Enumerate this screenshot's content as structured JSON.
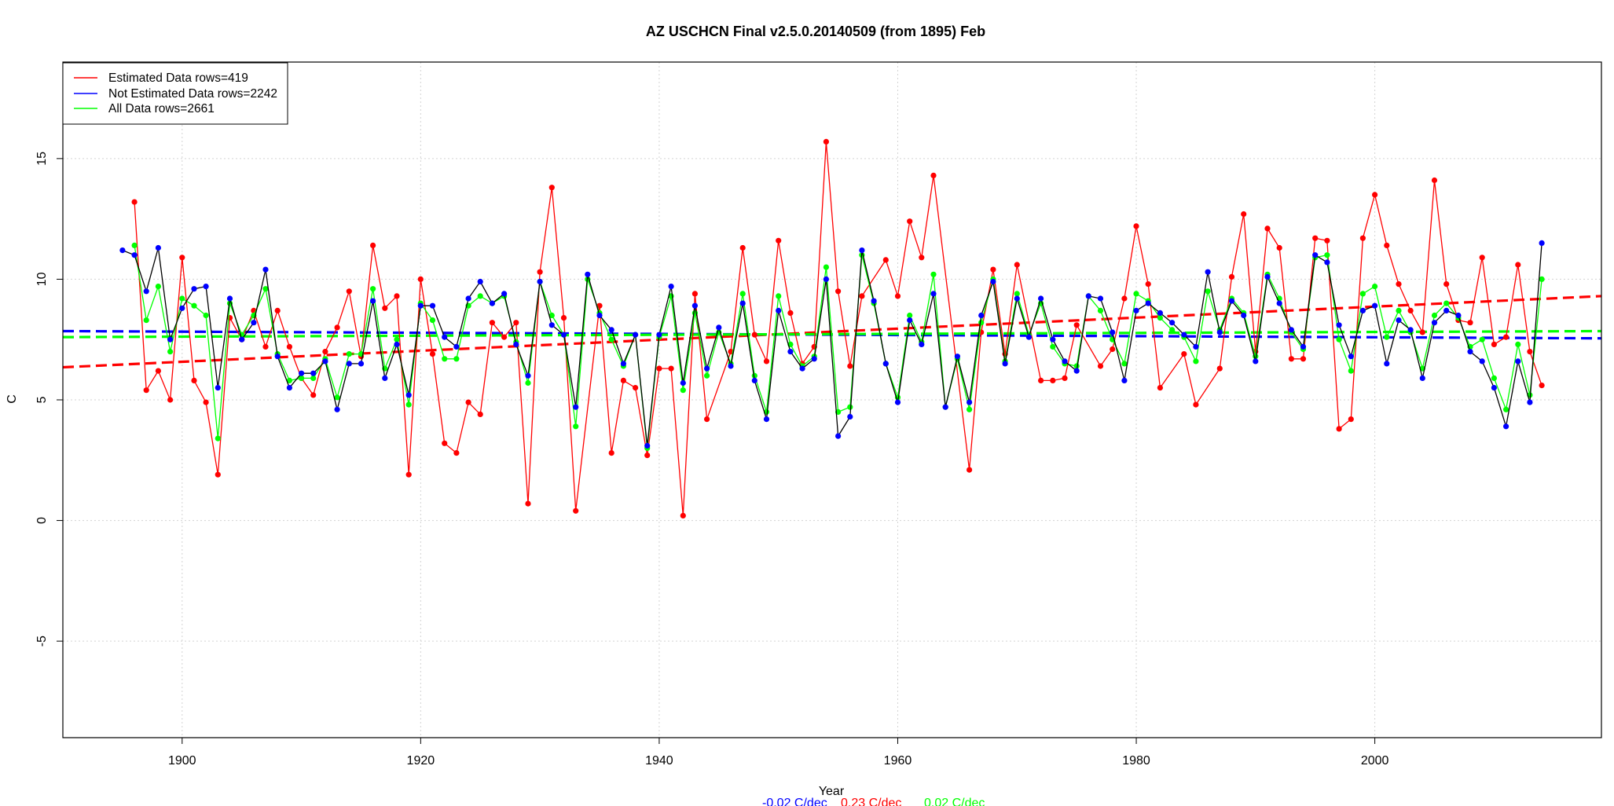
{
  "chart_data": {
    "type": "line",
    "title": "AZ USCHCN Final v2.5.0.20140509 (from 1895) Feb",
    "xlabel": "Year",
    "ylabel": "C",
    "xlim": [
      1890,
      2019
    ],
    "ylim": [
      -9,
      19
    ],
    "x_ticks": [
      1900,
      1920,
      1940,
      1960,
      1980,
      2000
    ],
    "y_ticks": [
      -5,
      0,
      5,
      10,
      15
    ],
    "grid": true,
    "legend_position": "top-left",
    "legend": [
      {
        "label": "Estimated Data rows=419",
        "color": "#ff0000"
      },
      {
        "label": "Not Estimated Data rows=2242",
        "color": "#0000ff"
      },
      {
        "label": "All Data rows=2661",
        "color": "#00ff00"
      }
    ],
    "slopes": [
      {
        "label": "-0.02 C/dec",
        "color": "#0000ff"
      },
      {
        "label": "0.23 C/dec",
        "color": "#ff0000"
      },
      {
        "label": "0.02 C/dec",
        "color": "#00ff00"
      }
    ],
    "trends": [
      {
        "name": "Estimated trend",
        "color": "#ff0000",
        "x": [
          1890,
          2019
        ],
        "y": [
          6.35,
          9.3
        ]
      },
      {
        "name": "Not Estimated trend",
        "color": "#0000ff",
        "x": [
          1890,
          2019
        ],
        "y": [
          7.85,
          7.55
        ]
      },
      {
        "name": "All Data trend",
        "color": "#00ff00",
        "x": [
          1890,
          2019
        ],
        "y": [
          7.6,
          7.85
        ]
      }
    ],
    "series": [
      {
        "name": "Estimated",
        "color": "#ff0000",
        "x": [
          1896,
          1897,
          1898,
          1899,
          1900,
          1901,
          1902,
          1903,
          1904,
          1905,
          1906,
          1907,
          1908,
          1909,
          1910,
          1911,
          1912,
          1913,
          1914,
          1915,
          1916,
          1917,
          1918,
          1919,
          1920,
          1921,
          1922,
          1923,
          1924,
          1925,
          1926,
          1927,
          1928,
          1929,
          1930,
          1931,
          1932,
          1933,
          1935,
          1936,
          1937,
          1938,
          1939,
          1940,
          1941,
          1942,
          1943,
          1944,
          1946,
          1947,
          1948,
          1949,
          1950,
          1951,
          1952,
          1953,
          1954,
          1955,
          1956,
          1957,
          1959,
          1960,
          1961,
          1962,
          1963,
          1966,
          1967,
          1968,
          1969,
          1970,
          1972,
          1973,
          1974,
          1975,
          1977,
          1978,
          1979,
          1980,
          1981,
          1982,
          1984,
          1985,
          1987,
          1988,
          1989,
          1990,
          1991,
          1992,
          1993,
          1994,
          1995,
          1996,
          1997,
          1998,
          1999,
          2000,
          2001,
          2002,
          2003,
          2004,
          2005,
          2006,
          2007,
          2008,
          2009,
          2010,
          2011,
          2012,
          2013,
          2014
        ],
        "y": [
          13.2,
          5.4,
          6.2,
          5.0,
          10.9,
          5.8,
          4.9,
          1.9,
          8.4,
          7.5,
          8.7,
          7.2,
          8.7,
          7.2,
          5.9,
          5.2,
          7.0,
          8.0,
          9.5,
          6.8,
          11.4,
          8.8,
          9.3,
          1.9,
          10.0,
          6.9,
          3.2,
          2.8,
          4.9,
          4.4,
          8.2,
          7.6,
          8.2,
          0.7,
          10.3,
          13.8,
          8.4,
          0.4,
          8.9,
          2.8,
          5.8,
          5.5,
          2.7,
          6.3,
          6.3,
          0.2,
          9.4,
          4.2,
          7.0,
          11.3,
          7.7,
          6.6,
          11.6,
          8.6,
          6.5,
          7.2,
          15.7,
          9.5,
          6.4,
          9.3,
          10.8,
          9.3,
          12.4,
          10.9,
          14.3,
          2.1,
          7.8,
          10.4,
          6.9,
          10.6,
          5.8,
          5.8,
          5.9,
          8.1,
          6.4,
          7.1,
          9.2,
          12.2,
          9.8,
          5.5,
          6.9,
          4.8,
          6.3,
          10.1,
          12.7,
          7.0,
          12.1,
          11.3,
          6.7,
          6.7,
          11.7,
          11.6,
          3.8,
          4.2,
          11.7,
          13.5,
          11.4,
          9.8,
          8.7,
          7.8,
          14.1,
          9.8,
          8.3,
          8.2,
          10.9,
          7.3,
          7.6,
          10.6,
          7.0,
          5.6
        ]
      },
      {
        "name": "Not Estimated",
        "color": "#0000ff",
        "x": [
          1895,
          1896,
          1897,
          1898,
          1899,
          1900,
          1901,
          1902,
          1903,
          1904,
          1905,
          1906,
          1907,
          1908,
          1909,
          1910,
          1911,
          1912,
          1913,
          1914,
          1915,
          1916,
          1917,
          1918,
          1919,
          1920,
          1921,
          1922,
          1923,
          1924,
          1925,
          1926,
          1927,
          1928,
          1929,
          1930,
          1931,
          1932,
          1933,
          1934,
          1935,
          1936,
          1937,
          1938,
          1939,
          1940,
          1941,
          1942,
          1943,
          1944,
          1945,
          1946,
          1947,
          1948,
          1949,
          1950,
          1951,
          1952,
          1953,
          1954,
          1955,
          1956,
          1957,
          1958,
          1959,
          1960,
          1961,
          1962,
          1963,
          1964,
          1965,
          1966,
          1967,
          1968,
          1969,
          1970,
          1971,
          1972,
          1973,
          1974,
          1975,
          1976,
          1977,
          1978,
          1979,
          1980,
          1981,
          1982,
          1983,
          1984,
          1985,
          1986,
          1987,
          1988,
          1989,
          1990,
          1991,
          1992,
          1993,
          1994,
          1995,
          1996,
          1997,
          1998,
          1999,
          2000,
          2001,
          2002,
          2003,
          2004,
          2005,
          2006,
          2007,
          2008,
          2009,
          2010,
          2011,
          2012,
          2013,
          2014
        ],
        "y": [
          11.2,
          11.0,
          9.5,
          11.3,
          7.5,
          8.8,
          9.6,
          9.7,
          5.5,
          9.2,
          7.5,
          8.2,
          10.4,
          6.8,
          5.5,
          6.1,
          6.1,
          6.6,
          4.6,
          6.5,
          6.5,
          9.1,
          5.9,
          7.3,
          5.2,
          8.9,
          8.9,
          7.6,
          7.2,
          9.2,
          9.9,
          9.0,
          9.4,
          7.3,
          6.0,
          9.9,
          8.1,
          7.7,
          4.7,
          10.2,
          8.5,
          7.9,
          6.5,
          7.7,
          3.1,
          7.7,
          9.7,
          5.7,
          8.9,
          6.3,
          8.0,
          6.4,
          9.0,
          5.8,
          4.2,
          8.7,
          7.0,
          6.3,
          6.7,
          10.0,
          3.5,
          4.3,
          11.2,
          9.1,
          6.5,
          4.9,
          8.3,
          7.3,
          9.4,
          4.7,
          6.8,
          4.9,
          8.5,
          9.9,
          6.5,
          9.2,
          7.6,
          9.2,
          7.5,
          6.6,
          6.2,
          9.3,
          9.2,
          7.8,
          5.8,
          8.7,
          9.0,
          8.6,
          8.2,
          7.7,
          7.2,
          10.3,
          7.8,
          9.1,
          8.5,
          6.6,
          10.1,
          9.0,
          7.9,
          7.2,
          11.0,
          10.7,
          8.1,
          6.8,
          8.7,
          8.9,
          6.5,
          8.3,
          7.9,
          5.9,
          8.2,
          8.7,
          8.5,
          7.0,
          6.6,
          5.5,
          3.9,
          6.6,
          4.9,
          11.5
        ]
      },
      {
        "name": "All Data",
        "color": "#00ff00",
        "x": [
          1896,
          1897,
          1898,
          1899,
          1900,
          1901,
          1902,
          1903,
          1904,
          1905,
          1906,
          1907,
          1908,
          1909,
          1910,
          1911,
          1912,
          1913,
          1914,
          1915,
          1916,
          1917,
          1918,
          1919,
          1920,
          1921,
          1922,
          1923,
          1924,
          1925,
          1926,
          1927,
          1928,
          1929,
          1930,
          1931,
          1932,
          1933,
          1934,
          1935,
          1936,
          1937,
          1938,
          1939,
          1940,
          1941,
          1942,
          1943,
          1944,
          1945,
          1946,
          1947,
          1948,
          1949,
          1950,
          1951,
          1952,
          1953,
          1954,
          1955,
          1956,
          1957,
          1958,
          1959,
          1960,
          1961,
          1962,
          1963,
          1964,
          1965,
          1966,
          1967,
          1968,
          1969,
          1970,
          1971,
          1972,
          1973,
          1974,
          1975,
          1976,
          1977,
          1978,
          1979,
          1980,
          1981,
          1982,
          1983,
          1984,
          1985,
          1986,
          1987,
          1988,
          1989,
          1990,
          1991,
          1992,
          1993,
          1994,
          1995,
          1996,
          1997,
          1998,
          1999,
          2000,
          2001,
          2002,
          2003,
          2004,
          2005,
          2006,
          2007,
          2008,
          2009,
          2010,
          2011,
          2012,
          2013,
          2014
        ],
        "y": [
          11.4,
          8.3,
          9.7,
          7.0,
          9.2,
          8.9,
          8.5,
          3.4,
          9.0,
          7.7,
          8.5,
          9.6,
          6.9,
          5.8,
          5.9,
          5.9,
          6.7,
          5.1,
          6.9,
          6.9,
          9.6,
          6.3,
          7.5,
          4.8,
          9.0,
          8.3,
          6.7,
          6.7,
          8.9,
          9.3,
          9.0,
          9.3,
          7.4,
          5.7,
          9.9,
          8.5,
          7.7,
          3.9,
          10.0,
          8.6,
          7.5,
          6.4,
          7.7,
          3.0,
          7.6,
          9.3,
          5.4,
          8.6,
          6.0,
          7.8,
          6.5,
          9.4,
          6.0,
          4.5,
          9.3,
          7.3,
          6.4,
          6.8,
          10.5,
          4.5,
          4.7,
          11.0,
          9.0,
          6.5,
          5.1,
          8.5,
          7.4,
          10.2,
          4.7,
          6.7,
          4.6,
          8.2,
          10.0,
          6.6,
          9.4,
          7.7,
          9.0,
          7.2,
          6.5,
          6.4,
          9.3,
          8.7,
          7.5,
          6.5,
          9.4,
          9.1,
          8.4,
          7.9,
          7.6,
          6.6,
          9.5,
          7.9,
          9.2,
          8.6,
          6.8,
          10.2,
          9.2,
          7.8,
          7.1,
          10.9,
          11.0,
          7.5,
          6.2,
          9.4,
          9.7,
          7.6,
          8.7,
          7.8,
          6.3,
          8.5,
          9.0,
          8.4,
          7.2,
          7.5,
          5.9,
          4.6,
          7.3,
          5.2,
          10.0
        ]
      }
    ]
  }
}
